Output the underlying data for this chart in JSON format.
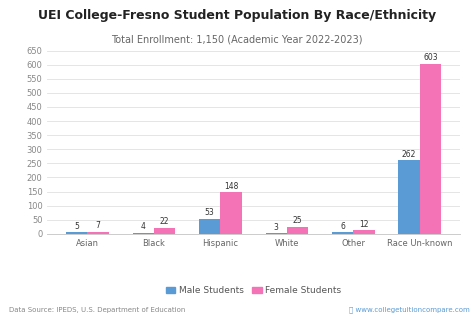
{
  "title": "UEI College-Fresno Student Population By Race/Ethnicity",
  "subtitle": "Total Enrollment: 1,150 (Academic Year 2022-2023)",
  "categories": [
    "Asian",
    "Black",
    "Hispanic",
    "White",
    "Other",
    "Race Un-known"
  ],
  "male_values": [
    5,
    4,
    53,
    3,
    6,
    262
  ],
  "female_values": [
    7,
    22,
    148,
    25,
    12,
    603
  ],
  "male_color": "#5B9BD5",
  "female_color": "#F472B6",
  "ylim": [
    0,
    650
  ],
  "yticks": [
    0,
    50,
    100,
    150,
    200,
    250,
    300,
    350,
    400,
    450,
    500,
    550,
    600,
    650
  ],
  "legend_male": "Male Students",
  "legend_female": "Female Students",
  "data_source": "Data Source: IPEDS, U.S. Department of Education",
  "website": "www.collegetuitioncompare.com",
  "background_color": "#ffffff",
  "bar_width": 0.32,
  "title_fontsize": 9.0,
  "subtitle_fontsize": 7.0,
  "tick_fontsize": 6.0,
  "value_fontsize": 5.5,
  "legend_fontsize": 6.5,
  "footer_fontsize": 5.0
}
